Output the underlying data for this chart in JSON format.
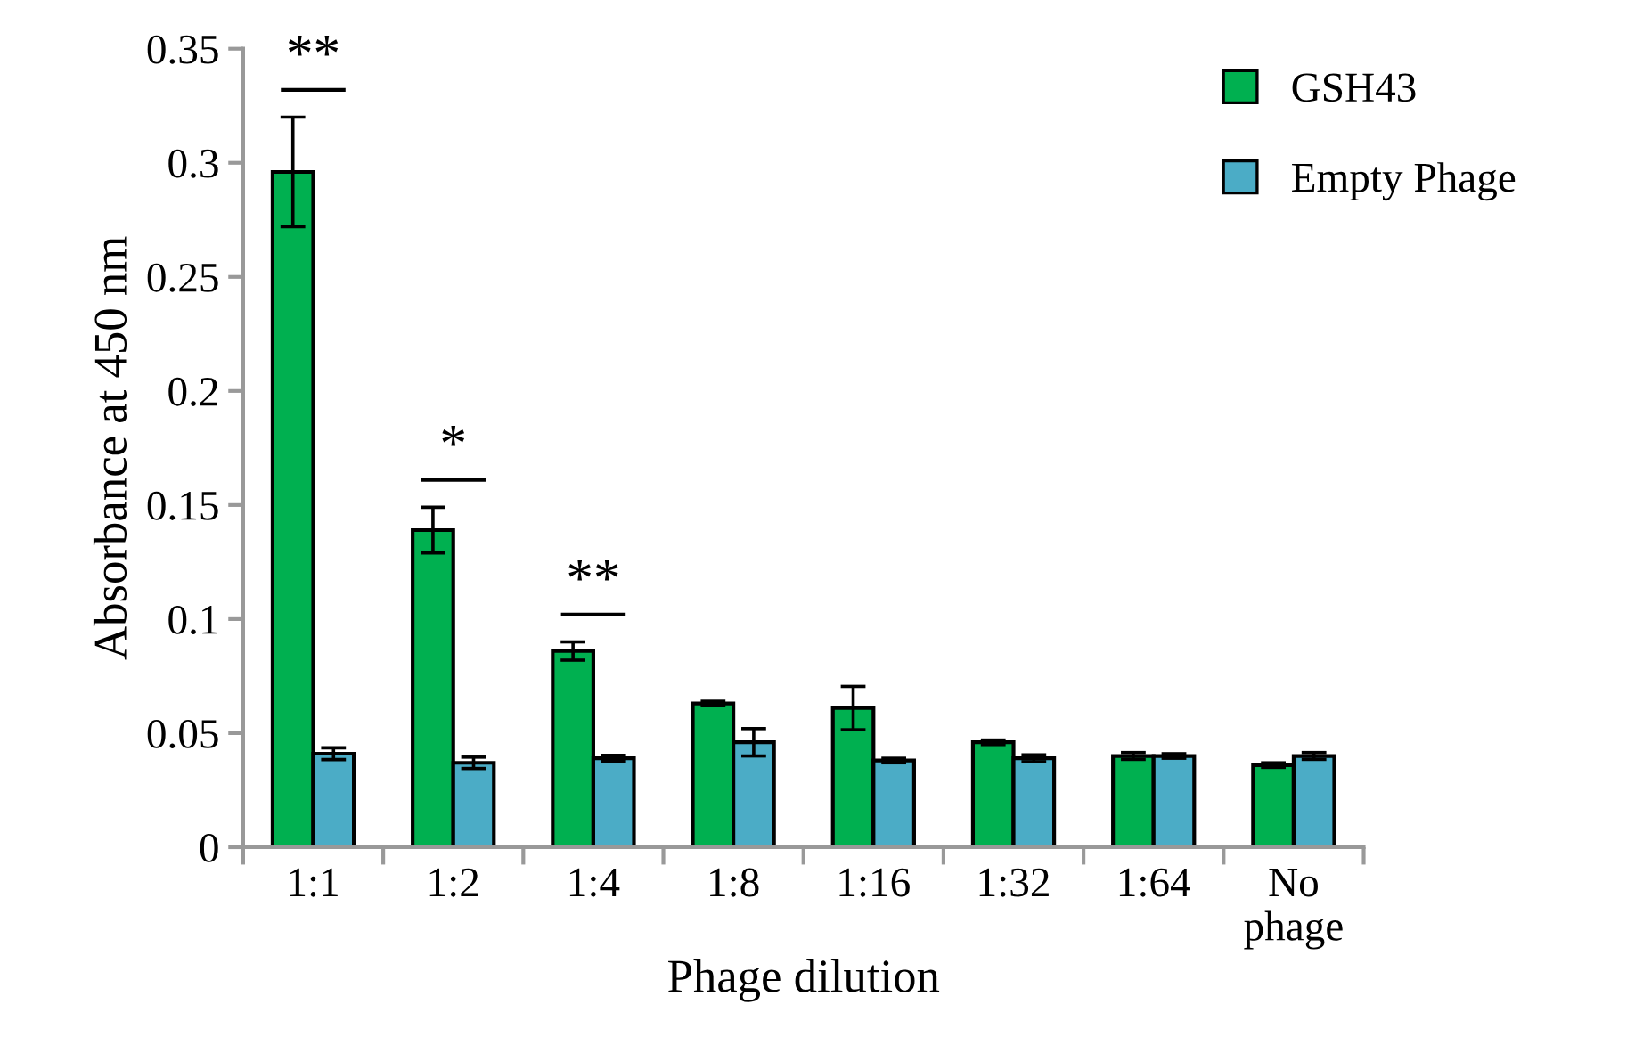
{
  "chart_data": {
    "type": "bar",
    "xlabel": "Phage dilution",
    "ylabel": "Absorbance at 450 nm",
    "categories": [
      "1:1",
      "1:2",
      "1:4",
      "1:8",
      "1:16",
      "1:32",
      "1:64",
      "No\nphage"
    ],
    "series": [
      {
        "name": "GSH43",
        "color": "#00b050",
        "values": [
          0.296,
          0.139,
          0.086,
          0.063,
          0.061,
          0.046,
          0.04,
          0.036
        ],
        "errors": [
          0.024,
          0.01,
          0.004,
          0.001,
          0.0095,
          0.001,
          0.0015,
          0.001
        ]
      },
      {
        "name": "Empty Phage",
        "color": "#4bacc6",
        "values": [
          0.041,
          0.037,
          0.039,
          0.046,
          0.038,
          0.039,
          0.04,
          0.04
        ],
        "errors": [
          0.0026,
          0.0025,
          0.0013,
          0.006,
          0.001,
          0.0015,
          0.001,
          0.0015
        ]
      }
    ],
    "ylim": [
      0,
      0.35
    ],
    "yticks": [
      {
        "value": 0,
        "label": "0"
      },
      0.05,
      {
        "value": 0.1,
        "label": "0.1"
      },
      0.15,
      {
        "value": 0.2,
        "label": "0.2"
      },
      0.25,
      {
        "value": 0.3,
        "label": "0.3"
      },
      0.35
    ],
    "annotations": [
      "**",
      "*",
      "**"
    ],
    "legend": "top right",
    "grid": false
  }
}
